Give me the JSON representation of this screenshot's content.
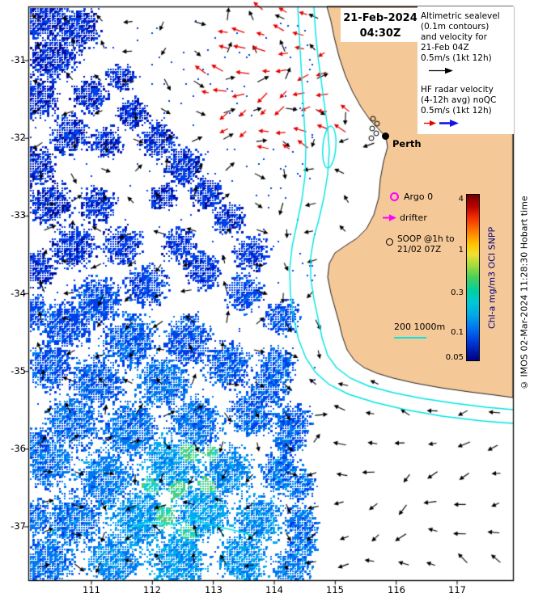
{
  "timestamp": {
    "date": "21-Feb-2024",
    "time": "04:30Z"
  },
  "legend": {
    "altimetric_lines": [
      "Altimetric sealevel",
      "(0.1m contours)",
      "and velocity for",
      "21-Feb 04Z",
      "0.5m/s (1kt 12h)"
    ],
    "hf_lines": [
      "HF radar velocity",
      "(4-12h avg) noQC",
      "0.5m/s (1kt 12h)"
    ]
  },
  "markers": {
    "perth": "Perth",
    "argo": "Argo 0",
    "drifter": "drifter",
    "soop_line1": "SOOP @1h to",
    "soop_line2": "21/02 07Z",
    "depth_scale": "200 1000m"
  },
  "colorbar": {
    "label": "Chl-a mg/m3 OCI SNPP",
    "ticks": [
      "4",
      "1",
      "0.3",
      "0.1",
      "0.05"
    ]
  },
  "axes": {
    "x_ticks": [
      "111",
      "112",
      "113",
      "114",
      "115",
      "116",
      "117"
    ],
    "y_ticks": [
      "-31",
      "-32",
      "-33",
      "-34",
      "-35",
      "-36",
      "-37"
    ]
  },
  "footer": "© IMOS 02-Mar-2024 11:28:30 Hobart time",
  "colors": {
    "land": "#f5c897",
    "ocean": "#ffffff",
    "contour": "#00e5e5",
    "altimetry_arrow": "#000000",
    "hf_arrow": "#e60000",
    "hf_arrow_blue": "#1414e6",
    "argo": "#ff00ff",
    "drifter": "#ff00ff",
    "cbar_label": "#000080",
    "chl_palette": [
      "#000a90",
      "#0018c0",
      "#0040e8",
      "#0078f0",
      "#00aaf0",
      "#00ccee",
      "#2ad4b4",
      "#55cc77"
    ]
  }
}
